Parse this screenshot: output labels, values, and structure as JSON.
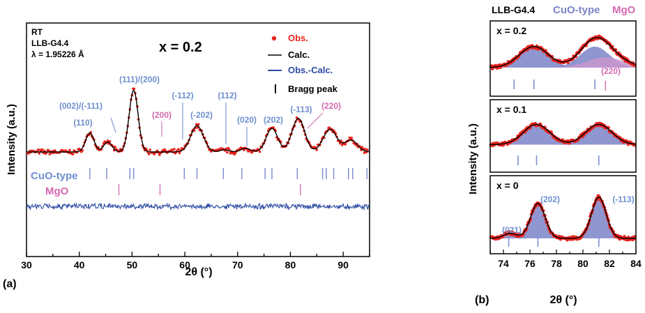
{
  "chart_data": [
    {
      "panel": "(a)",
      "type": "line",
      "xlabel": "2θ (°)",
      "ylabel": "Intensity (a.u.)",
      "xlim": [
        30,
        95
      ],
      "x_ticks": [
        30,
        40,
        50,
        60,
        70,
        80,
        90
      ],
      "info": [
        "RT",
        "LLB-G4.4",
        "λ = 1.95226 Å"
      ],
      "title": "x = 0.2",
      "legend": [
        {
          "label": "Obs.",
          "color": "#e8231c",
          "marker": "dot"
        },
        {
          "label": "Calc.",
          "color": "#000000",
          "marker": "line"
        },
        {
          "label": "Obs.-Calc.",
          "color": "#2b4aa3",
          "marker": "line"
        },
        {
          "label": "Bragg peak",
          "color": "#000000",
          "marker": "tick"
        }
      ],
      "pattern": {
        "baseline": 0.55,
        "peaks": [
          {
            "pos": 42.0,
            "height": 1.05,
            "width": 0.8
          },
          {
            "pos": 45.4,
            "height": 0.55,
            "width": 0.8
          },
          {
            "pos": 50.3,
            "height": 3.4,
            "width": 0.85
          },
          {
            "pos": 62.3,
            "height": 1.45,
            "width": 1.2
          },
          {
            "pos": 67.5,
            "height": 0.12,
            "width": 0.8
          },
          {
            "pos": 71.5,
            "height": 0.2,
            "width": 0.9
          },
          {
            "pos": 76.5,
            "height": 1.3,
            "width": 1.1
          },
          {
            "pos": 81.5,
            "height": 1.85,
            "width": 1.2
          },
          {
            "pos": 87.5,
            "height": 1.25,
            "width": 1.3
          },
          {
            "pos": 91.5,
            "height": 0.65,
            "width": 1.2
          }
        ]
      },
      "peak_labels": [
        {
          "label": "(110)",
          "pos": 42.0,
          "phase": "CuO-type"
        },
        {
          "label": "(002)/(-111)",
          "pos": 45.4,
          "phase": "CuO-type"
        },
        {
          "label": "(111)/(200)",
          "pos": 50.3,
          "phase": "CuO-type"
        },
        {
          "label": "(200)",
          "pos": 55.0,
          "phase": "MgO"
        },
        {
          "label": "(-112)",
          "pos": 59.0,
          "phase": "CuO-type"
        },
        {
          "label": "(-202)",
          "pos": 62.2,
          "phase": "CuO-type"
        },
        {
          "label": "(112)",
          "pos": 67.2,
          "phase": "CuO-type"
        },
        {
          "label": "(020)",
          "pos": 71.2,
          "phase": "CuO-type"
        },
        {
          "label": "(202)",
          "pos": 76.5,
          "phase": "CuO-type"
        },
        {
          "label": "(-113)",
          "pos": 81.3,
          "phase": "CuO-type"
        },
        {
          "label": "(220)",
          "pos": 82.5,
          "phase": "MgO"
        }
      ],
      "bragg_ticks": {
        "CuO-type": [
          42.0,
          45.2,
          49.6,
          50.3,
          59.9,
          62.3,
          67.3,
          70.8,
          75.2,
          76.5,
          81.3,
          86.1,
          86.8,
          88.2,
          91.0,
          91.8,
          94.5
        ],
        "MgO": [
          47.5,
          55.3,
          81.9
        ]
      },
      "phase_labels": [
        "CuO-type",
        "MgO"
      ]
    },
    {
      "panel": "(b)",
      "type": "line",
      "header": {
        "sample": "LLB-G4.4",
        "phase1": "CuO-type",
        "phase2": "MgO"
      },
      "xlabel": "2θ (°)",
      "ylabel": "Intensity (a.u.)",
      "xlim": [
        73,
        84
      ],
      "x_ticks": [
        74,
        76,
        78,
        80,
        82,
        84
      ],
      "subpanels": [
        {
          "label": "x = 0.2",
          "baseline": 0.28,
          "peaks": [
            {
              "pos": 76.3,
              "height": 0.45,
              "width": 1.1,
              "phase": "CuO-type"
            },
            {
              "pos": 80.9,
              "height": 0.45,
              "width": 1.1,
              "phase": "CuO-type"
            },
            {
              "pos": 81.7,
              "height": 0.22,
              "width": 1.4,
              "phase": "MgO"
            }
          ],
          "ticks_cuo": [
            74.8,
            76.3,
            80.9
          ],
          "ticks_mgo": [
            81.7
          ],
          "annotations": [
            {
              "label": "(220)",
              "pos": 82.4,
              "phase": "MgO"
            }
          ]
        },
        {
          "label": "x = 0.1",
          "baseline": 0.22,
          "peaks": [
            {
              "pos": 76.5,
              "height": 0.45,
              "width": 1.0,
              "phase": "CuO-type"
            },
            {
              "pos": 81.2,
              "height": 0.45,
              "width": 1.0,
              "phase": "CuO-type"
            }
          ],
          "ticks_cuo": [
            75.1,
            76.5,
            81.2
          ],
          "ticks_mgo": [],
          "annotations": []
        },
        {
          "label": "x = 0",
          "baseline": 0.08,
          "peaks": [
            {
              "pos": 74.5,
              "height": 0.1,
              "width": 0.5,
              "phase": "CuO-type"
            },
            {
              "pos": 76.6,
              "height": 0.72,
              "width": 0.55,
              "phase": "CuO-type"
            },
            {
              "pos": 81.2,
              "height": 0.85,
              "width": 0.55,
              "phase": "CuO-type"
            }
          ],
          "ticks_cuo": [
            74.4,
            76.6,
            81.2
          ],
          "ticks_mgo": [],
          "annotations": [
            {
              "label": "(021)",
              "pos": 74.4,
              "phase": "CuO-type"
            },
            {
              "label": "(202)",
              "pos": 77.4,
              "phase": "CuO-type"
            },
            {
              "label": "(-113)",
              "pos": 82.5,
              "phase": "CuO-type"
            }
          ]
        }
      ]
    }
  ],
  "colors": {
    "obs": "#e8231c",
    "calc": "#000000",
    "diff": "#2b4aa3",
    "cuo": "#7f8fd0",
    "mgo": "#d47ab8",
    "fill_cuo": "#7b84c8",
    "fill_mgo": "#c996cf",
    "label_cuo": "#6f8fcf",
    "label_mgo": "#d468b0"
  }
}
